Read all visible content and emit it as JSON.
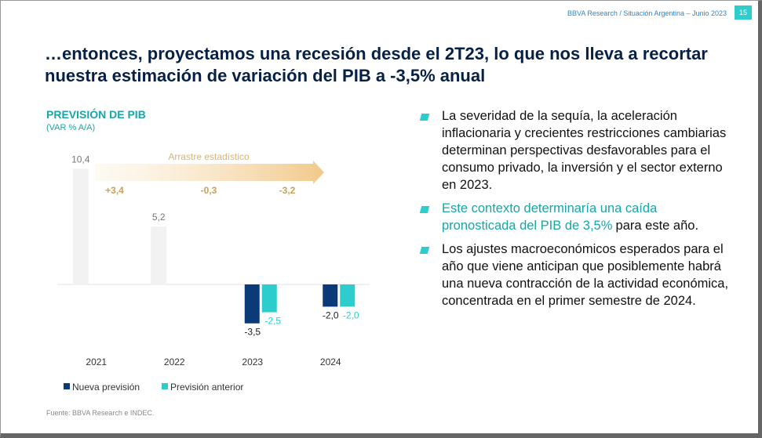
{
  "header": {
    "source": "BBVA Research / Situación Argentina – Junio 2023",
    "page": "15"
  },
  "title": "…entonces, proyectamos una recesión desde el 2T23, lo que nos lleva a recortar nuestra estimación de variación del PIB a -3,5% anual",
  "chart_data": {
    "type": "bar",
    "title": "PREVISIÓN DE PIB",
    "subtitle": "(VAR % A/A)",
    "categories": [
      "2021",
      "2022",
      "2023",
      "2024"
    ],
    "values": [
      10.4,
      5.2,
      null,
      null
    ],
    "value_labels": [
      "10,4",
      "5,2",
      null,
      null
    ],
    "color": "#f2f2f2",
    "series": [
      {
        "name": "Nueva previsión",
        "color": "#0b3a78",
        "values": [
          null,
          null,
          -3.5,
          -2.0
        ],
        "value_labels": [
          null,
          null,
          "-3,5",
          "-2,0"
        ]
      },
      {
        "name": "Previsión anterior",
        "color": "#2dcccd",
        "values": [
          null,
          null,
          -2.5,
          -2.0
        ],
        "value_labels": [
          null,
          null,
          "-2,5",
          "-2,0"
        ]
      }
    ],
    "ylim": [
      -5,
      11
    ],
    "carryover": {
      "label": "Arrastre estadístico",
      "values": [
        3.4,
        -0.3,
        -3.2
      ],
      "value_labels": [
        "+3,4",
        "-0,3",
        "-3,2"
      ]
    },
    "legend": "bottom"
  },
  "bullets": [
    {
      "text": "La severidad de la sequía, la aceleración inflacionaria y crecientes restricciones cambiarias determinan perspectivas desfavorables para el consumo privado, la inversión y el sector externo en 2023."
    },
    {
      "highlight": "Este contexto determinaría una caída pronosticada del PIB de 3,5%",
      "text": "para este año."
    },
    {
      "text": "Los ajustes macroeconómicos esperados para el año que viene anticipan que posiblemente habrá una nueva contracción de la actividad económica, concentrada en el primer semestre de 2024."
    }
  ],
  "footnote": "Fuente: BBVA Research e INDEC."
}
